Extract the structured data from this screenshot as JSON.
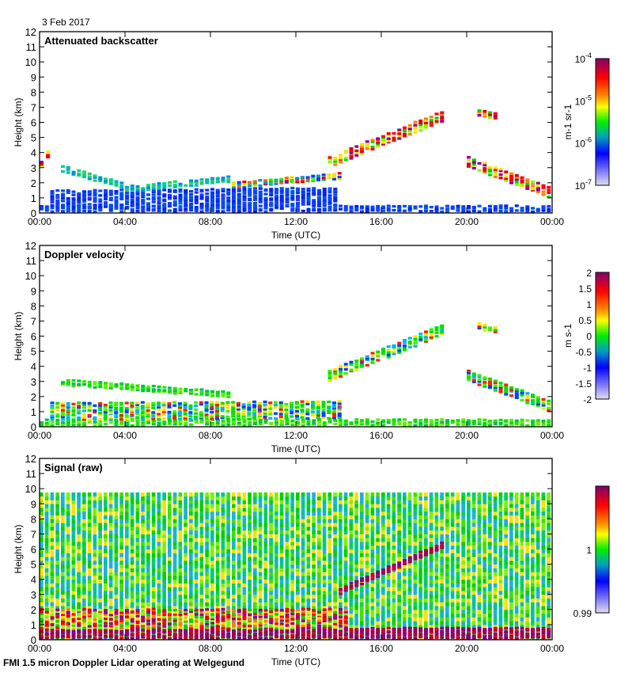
{
  "date_label": "3 Feb 2017",
  "footer": "FMI 1.5 micron Doppler Lidar operating at Welgegund",
  "chart_data": [
    {
      "type": "heatmap",
      "title": "Attenuated backscatter",
      "xlabel": "Time (UTC)",
      "ylabel": "Height (km)",
      "xlim": [
        0,
        24
      ],
      "ylim": [
        0,
        12
      ],
      "xticks": [
        "00:00",
        "04:00",
        "08:00",
        "12:00",
        "16:00",
        "20:00",
        "00:00"
      ],
      "yticks": [
        "0",
        "1",
        "2",
        "3",
        "4",
        "5",
        "6",
        "7",
        "8",
        "9",
        "10",
        "11",
        "12"
      ],
      "colorbar": {
        "label": "m-1 sr-1",
        "ticks": [
          "10-4",
          "10-5",
          "10-6",
          "10-7"
        ],
        "scale": "log",
        "range": [
          1e-07,
          0.0001
        ]
      },
      "layers": [
        {
          "feature": "surface layer",
          "t": [
            0,
            24
          ],
          "h_start": 0.05,
          "h_end": 0.05,
          "depth": 0.45,
          "palette": "blue"
        },
        {
          "feature": "residual layer",
          "t": [
            0.5,
            14
          ],
          "h_start": 0.3,
          "h_end": 0.5,
          "depth": 1.2,
          "palette": "blue"
        },
        {
          "feature": "aerosol layer top",
          "t": [
            1,
            4.5
          ],
          "h_start": 2.7,
          "h_end": 1.4,
          "depth": 0.5,
          "palette": "cyan"
        },
        {
          "feature": "aerosol layer top",
          "t": [
            4.5,
            9
          ],
          "h_start": 1.4,
          "h_end": 2.0,
          "depth": 0.5,
          "palette": "cyan"
        },
        {
          "feature": "aerosol layer top",
          "t": [
            9,
            14.2
          ],
          "h_start": 1.6,
          "h_end": 2.2,
          "depth": 0.5,
          "palette": "mixed"
        },
        {
          "feature": "early cloud",
          "t": [
            0,
            0.6
          ],
          "h_start": 3.0,
          "h_end": 3.6,
          "depth": 0.4,
          "palette": "hot"
        },
        {
          "feature": "mid clouds",
          "t": [
            13.5,
            19
          ],
          "h_start": 3.0,
          "h_end": 6.0,
          "depth": 0.8,
          "palette": "hot"
        },
        {
          "feature": "high cloud",
          "t": [
            20.5,
            21.5
          ],
          "h_start": 6.4,
          "h_end": 6.2,
          "depth": 0.4,
          "palette": "hot"
        },
        {
          "feature": "descending cloud",
          "t": [
            20,
            24
          ],
          "h_start": 3.0,
          "h_end": 1.0,
          "depth": 0.8,
          "palette": "hot"
        }
      ]
    },
    {
      "type": "heatmap",
      "title": "Doppler velocity",
      "xlabel": "Time (UTC)",
      "ylabel": "Height (km)",
      "xlim": [
        0,
        24
      ],
      "ylim": [
        0,
        12
      ],
      "xticks": [
        "00:00",
        "04:00",
        "08:00",
        "12:00",
        "16:00",
        "20:00",
        "00:00"
      ],
      "yticks": [
        "0",
        "1",
        "2",
        "3",
        "4",
        "5",
        "6",
        "7",
        "8",
        "9",
        "10",
        "11",
        "12"
      ],
      "colorbar": {
        "label": "m s-1",
        "ticks": [
          "2",
          "1.5",
          "1",
          "0.5",
          "0",
          "-0.5",
          "-1",
          "-1.5",
          "-2"
        ],
        "range": [
          -2,
          2
        ]
      },
      "layers": [
        {
          "feature": "surface layer",
          "t": [
            0,
            24
          ],
          "h_start": 0.05,
          "h_end": 0.05,
          "depth": 0.4,
          "palette": "green"
        },
        {
          "feature": "residual layer",
          "t": [
            0.5,
            14.2
          ],
          "h_start": 0.4,
          "h_end": 0.5,
          "depth": 1.2,
          "palette": "velmix"
        },
        {
          "feature": "aerosol layer top",
          "t": [
            1,
            9
          ],
          "h_start": 2.7,
          "h_end": 1.9,
          "depth": 0.5,
          "palette": "green"
        },
        {
          "feature": "mid clouds",
          "t": [
            13.5,
            19
          ],
          "h_start": 3.0,
          "h_end": 6.0,
          "depth": 0.8,
          "palette": "velmix"
        },
        {
          "feature": "high cloud",
          "t": [
            20.5,
            21.5
          ],
          "h_start": 6.4,
          "h_end": 6.2,
          "depth": 0.4,
          "palette": "velmix"
        },
        {
          "feature": "descending cloud",
          "t": [
            20,
            24
          ],
          "h_start": 3.0,
          "h_end": 1.0,
          "depth": 0.8,
          "palette": "velmix"
        }
      ]
    },
    {
      "type": "heatmap",
      "title": "Signal (raw)",
      "xlabel": "Time (UTC)",
      "ylabel": "Height (km)",
      "xlim": [
        0,
        24
      ],
      "ylim": [
        0,
        12
      ],
      "max_height_km": 9.6,
      "xticks": [
        "00:00",
        "04:00",
        "08:00",
        "12:00",
        "16:00",
        "20:00",
        "00:00"
      ],
      "yticks": [
        "0",
        "1",
        "2",
        "3",
        "4",
        "5",
        "6",
        "7",
        "8",
        "9",
        "10",
        "11",
        "12"
      ],
      "colorbar": {
        "label": "",
        "ticks": [
          "1",
          "0.99"
        ],
        "range": [
          0.99,
          1.01
        ]
      },
      "layers": [
        {
          "feature": "surface layer",
          "t": [
            0,
            24
          ],
          "h_start": 0.05,
          "h_end": 0.05,
          "depth": 0.7,
          "palette": "purple"
        },
        {
          "feature": "boundary layer",
          "t": [
            0,
            14.5
          ],
          "h_start": 0.7,
          "h_end": 0.7,
          "depth": 1.4,
          "palette": "hot"
        },
        {
          "feature": "mid clouds",
          "t": [
            14,
            19
          ],
          "h_start": 3.0,
          "h_end": 6.0,
          "depth": 0.5,
          "palette": "purple"
        }
      ]
    }
  ]
}
